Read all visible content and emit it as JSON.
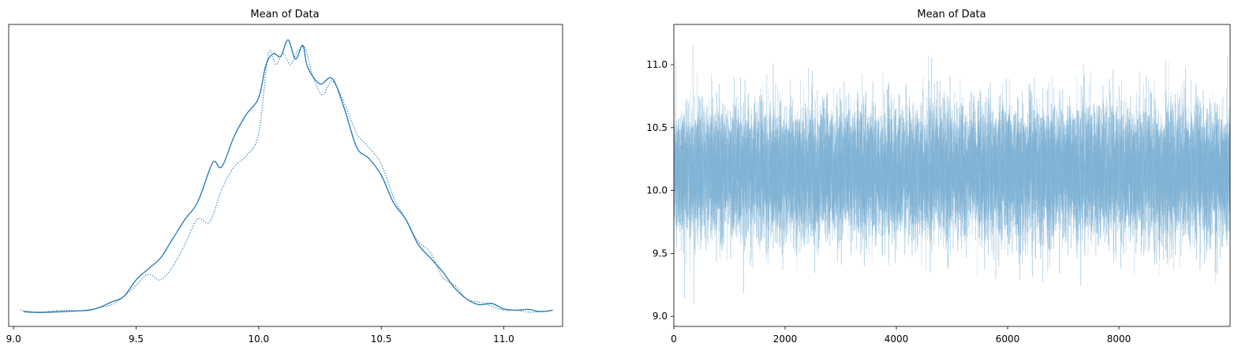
{
  "chart_data": [
    {
      "type": "line",
      "title": "Mean of Data",
      "xlabel": "",
      "ylabel": "",
      "xlim": [
        8.98,
        11.24
      ],
      "xticks": [
        9.0,
        9.5,
        10.0,
        10.5,
        11.0
      ],
      "xtick_labels": [
        "9.0",
        "9.5",
        "10.0",
        "10.5",
        "11.0"
      ],
      "yticks_visible": false,
      "grid": false,
      "color": "#1f77b4",
      "series": [
        {
          "style": "solid",
          "x": [
            9.04,
            9.1,
            9.2,
            9.3,
            9.35,
            9.4,
            9.45,
            9.5,
            9.55,
            9.6,
            9.65,
            9.7,
            9.75,
            9.8,
            9.82,
            9.85,
            9.9,
            9.95,
            10.0,
            10.03,
            10.06,
            10.09,
            10.12,
            10.15,
            10.18,
            10.2,
            10.25,
            10.3,
            10.35,
            10.4,
            10.45,
            10.5,
            10.55,
            10.6,
            10.65,
            10.7,
            10.75,
            10.8,
            10.85,
            10.9,
            10.95,
            11.0,
            11.05,
            11.1,
            11.15,
            11.2
          ],
          "y": [
            0.005,
            0.002,
            0.005,
            0.01,
            0.02,
            0.04,
            0.06,
            0.12,
            0.16,
            0.2,
            0.27,
            0.34,
            0.4,
            0.52,
            0.55,
            0.53,
            0.64,
            0.72,
            0.78,
            0.9,
            0.94,
            0.93,
            0.99,
            0.92,
            0.97,
            0.89,
            0.83,
            0.85,
            0.74,
            0.6,
            0.56,
            0.5,
            0.4,
            0.34,
            0.25,
            0.2,
            0.15,
            0.09,
            0.05,
            0.03,
            0.035,
            0.015,
            0.01,
            0.013,
            0.005,
            0.01
          ]
        },
        {
          "style": "dotted",
          "x": [
            9.03,
            9.1,
            9.2,
            9.3,
            9.35,
            9.4,
            9.45,
            9.5,
            9.55,
            9.6,
            9.65,
            9.7,
            9.75,
            9.8,
            9.85,
            9.9,
            9.95,
            10.0,
            10.04,
            10.07,
            10.1,
            10.13,
            10.16,
            10.19,
            10.22,
            10.26,
            10.3,
            10.35,
            10.4,
            10.45,
            10.5,
            10.55,
            10.6,
            10.65,
            10.7,
            10.75,
            10.8,
            10.85,
            10.9,
            10.95,
            11.0,
            11.05,
            11.1,
            11.15
          ],
          "y": [
            0.01,
            0.003,
            0.01,
            0.008,
            0.02,
            0.03,
            0.06,
            0.1,
            0.14,
            0.12,
            0.17,
            0.25,
            0.34,
            0.33,
            0.45,
            0.53,
            0.57,
            0.65,
            0.94,
            0.9,
            0.94,
            0.9,
            0.95,
            0.96,
            0.86,
            0.79,
            0.84,
            0.76,
            0.65,
            0.6,
            0.54,
            0.42,
            0.34,
            0.26,
            0.22,
            0.13,
            0.1,
            0.05,
            0.04,
            0.025,
            0.01,
            0.01,
            0.003,
            0.005
          ]
        }
      ]
    },
    {
      "type": "line",
      "title": "Mean of Data",
      "xlabel": "",
      "ylabel": "",
      "xlim": [
        0,
        9999
      ],
      "ylim": [
        8.92,
        11.32
      ],
      "xticks": [
        0,
        2000,
        4000,
        6000,
        8000
      ],
      "xtick_labels": [
        "0",
        "2000",
        "4000",
        "6000",
        "8000"
      ],
      "yticks": [
        9.0,
        9.5,
        10.0,
        10.5,
        11.0
      ],
      "ytick_labels": [
        "9.0",
        "9.5",
        "10.0",
        "10.5",
        "11.0"
      ],
      "grid": false,
      "color": "#1f77b4",
      "alpha": 0.35,
      "series": [
        {
          "style": "solid",
          "n_draws": 10000,
          "mean": 10.15,
          "sd": 0.25,
          "y_min": 9.05,
          "y_max": 11.21
        },
        {
          "style": "dotted",
          "n_draws": 10000,
          "mean": 10.15,
          "sd": 0.25,
          "y_min": 9.03,
          "y_max": 11.2
        }
      ]
    }
  ]
}
